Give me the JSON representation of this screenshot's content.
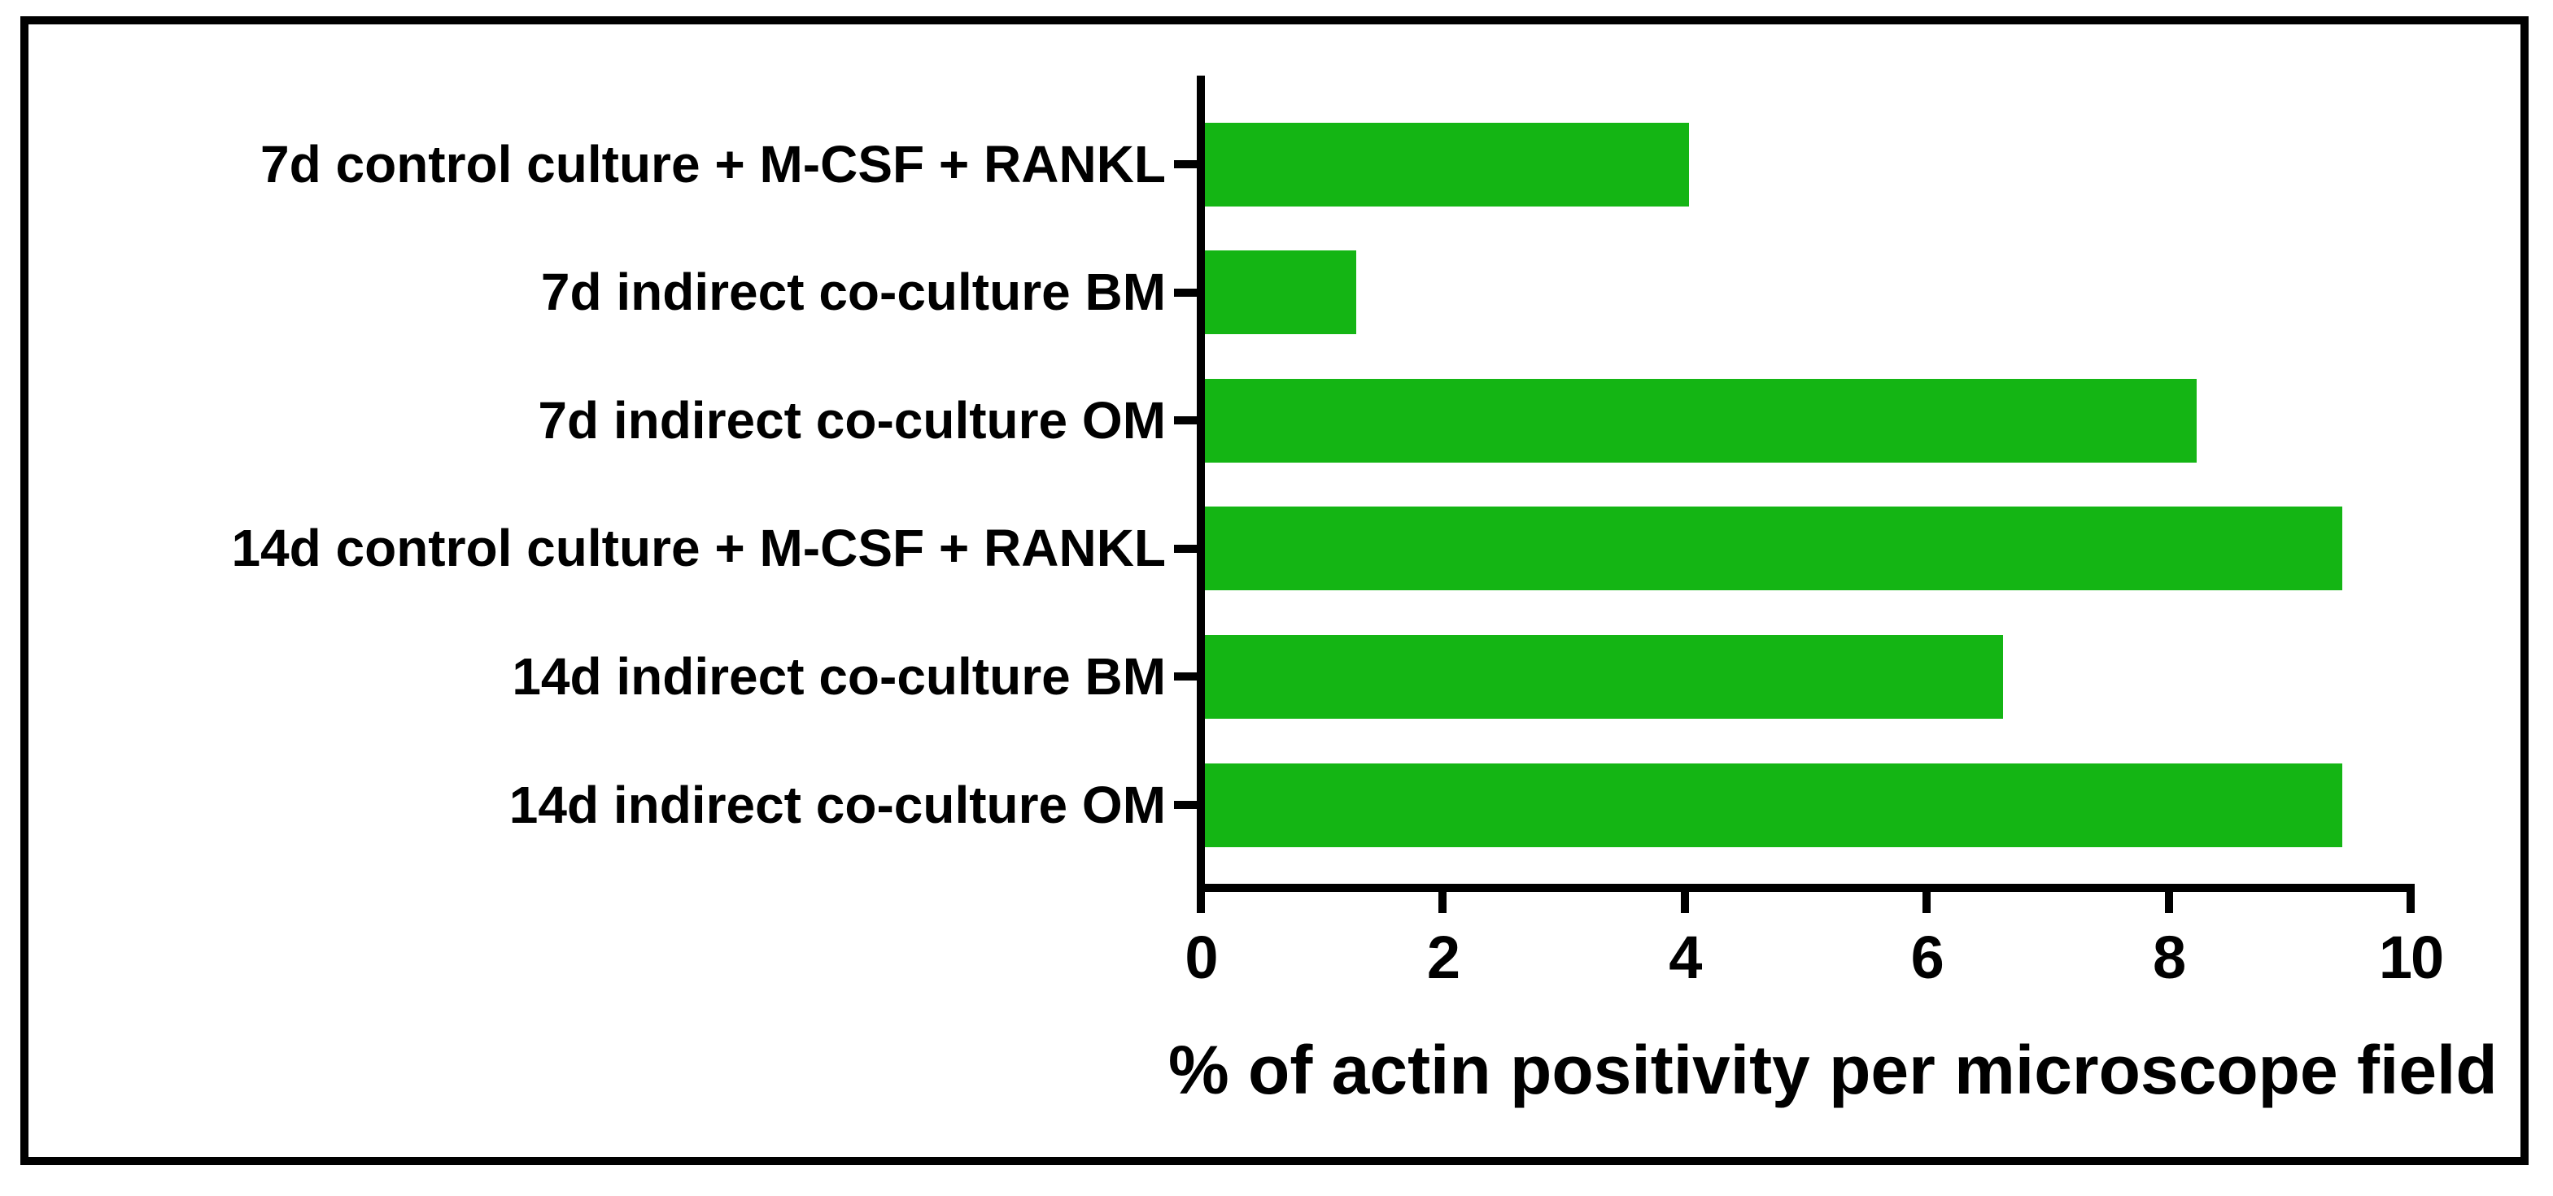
{
  "chart_data": {
    "type": "bar",
    "orientation": "horizontal",
    "title": "",
    "xlabel": "% of actin positivity per microscope field",
    "ylabel": "",
    "categories": [
      "7d control culture + M-CSF + RANKL",
      "7d indirect co-culture BM",
      "7d indirect co-culture OM",
      "14d control culture + M-CSF + RANKL",
      "14d indirect co-culture BM",
      "14d indirect co-culture OM"
    ],
    "values": [
      4.0,
      1.25,
      8.2,
      9.4,
      6.6,
      9.4
    ],
    "xlim": [
      0,
      10
    ],
    "xticks": [
      0,
      2,
      4,
      6,
      8,
      10
    ],
    "grid": false,
    "legend": null,
    "bar_color": "#14b514",
    "axis_color": "#000000",
    "text_color": "#000000",
    "background_color": "#ffffff",
    "frame_border_color": "#000000"
  }
}
